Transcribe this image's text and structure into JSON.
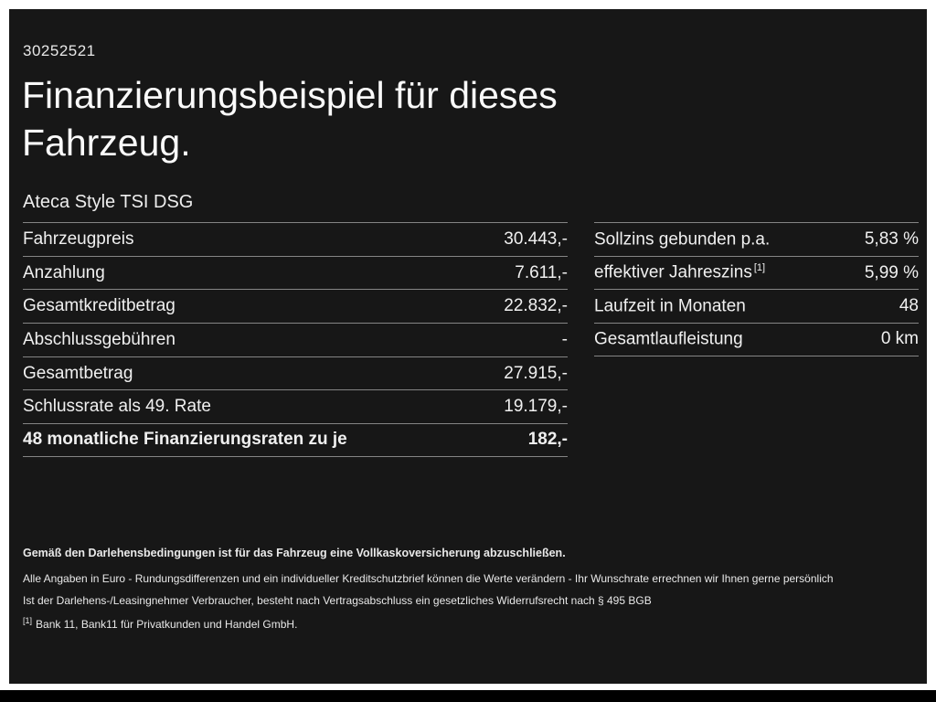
{
  "meta": {
    "id_number": "30252521"
  },
  "header": {
    "title_line1": "Finanzierungsbeispiel für dieses",
    "title_line2": "Fahrzeug.",
    "vehicle_name": "Ateca Style TSI DSG"
  },
  "tables": {
    "left": {
      "rows": [
        {
          "label": "Fahrzeugpreis",
          "value": "30.443,-"
        },
        {
          "label": "Anzahlung",
          "value": "7.611,-"
        },
        {
          "label": "Gesamtkreditbetrag",
          "value": "22.832,-"
        },
        {
          "label": "Abschlussgebühren",
          "value": "-"
        },
        {
          "label": "Gesamtbetrag",
          "value": "27.915,-"
        },
        {
          "label": "Schlussrate als 49. Rate",
          "value": "19.179,-"
        },
        {
          "label": "48 monatliche Finanzierungsraten zu je",
          "value": "182,-"
        }
      ]
    },
    "right": {
      "rows": [
        {
          "label": "Sollzins gebunden p.a.",
          "sup": "",
          "value": "5,83 %"
        },
        {
          "label": "effektiver Jahreszins",
          "sup": "[1]",
          "value": "5,99 %"
        },
        {
          "label": "Laufzeit in Monaten",
          "sup": "",
          "value": "48"
        },
        {
          "label": "Gesamtlaufleistung",
          "sup": "",
          "value": "0 km"
        }
      ]
    }
  },
  "footnotes": {
    "insurance_note": "Gemäß den Darlehensbedingungen ist für das Fahrzeug eine Vollkaskoversicherung abzuschließen.",
    "note_rounding": "Alle Angaben in Euro - Rundungsdifferenzen und ein individueller Kreditschutzbrief können die Werte verändern - Ihr Wunschrate errechnen wir Ihnen gerne persönlich",
    "note_withdrawal": "Ist der Darlehens-/Leasingnehmer Verbraucher, besteht nach Vertragsabschluss ein gesetzliches Widerrufsrecht nach § 495 BGB",
    "ref_marker": "[1]",
    "ref_text": "Bank 11, Bank11 für Privatkunden und Handel GmbH."
  },
  "colors": {
    "frame": "#ffffff",
    "background": "#171717",
    "text": "#f2f2f2",
    "divider": "#858585",
    "bottom_bar": "#000000"
  }
}
